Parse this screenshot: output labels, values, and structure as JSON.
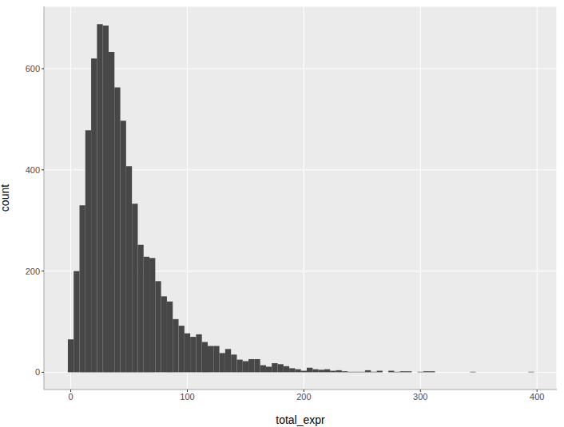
{
  "chart_data": {
    "type": "histogram",
    "x_label": "total_expr",
    "y_label": "count",
    "bins": [
      -2.5,
      2.5,
      7.5,
      12.5,
      17.5,
      22.5,
      27.5,
      32.5,
      37.5,
      42.5,
      47.5,
      52.5,
      57.5,
      62.5,
      67.5,
      72.5,
      77.5,
      82.5,
      87.5,
      92.5,
      97.5,
      102.5,
      107.5,
      112.5,
      117.5,
      122.5,
      127.5,
      132.5,
      137.5,
      142.5,
      147.5,
      152.5,
      157.5,
      162.5,
      167.5,
      172.5,
      177.5,
      182.5,
      187.5,
      192.5,
      197.5,
      202.5,
      207.5,
      212.5,
      217.5,
      222.5,
      227.5,
      232.5,
      237.5,
      242.5,
      247.5,
      252.5,
      257.5,
      262.5,
      267.5,
      272.5,
      277.5,
      282.5,
      287.5,
      292.5,
      297.5,
      302.5,
      307.5,
      312.5,
      317.5,
      322.5,
      327.5,
      332.5,
      337.5,
      342.5,
      347.5,
      352.5,
      357.5,
      362.5,
      367.5,
      372.5,
      377.5,
      382.5,
      387.5,
      392.5,
      397.5
    ],
    "values": [
      65,
      200,
      330,
      478,
      620,
      688,
      685,
      633,
      563,
      497,
      407,
      333,
      252,
      228,
      226,
      180,
      150,
      140,
      105,
      92,
      77,
      70,
      75,
      60,
      52,
      52,
      38,
      46,
      35,
      25,
      22,
      26,
      26,
      14,
      11,
      18,
      16,
      12,
      8,
      6,
      3,
      9,
      6,
      5,
      6,
      3,
      4,
      2,
      1,
      1,
      1,
      4,
      1,
      3,
      0,
      3,
      1,
      2,
      2,
      0,
      1,
      2,
      2,
      0,
      0,
      0,
      0,
      0,
      0,
      1,
      0,
      0,
      0,
      0,
      0,
      0,
      0,
      0,
      0,
      1
    ],
    "color": "#474747",
    "xlim": [
      -23,
      417
    ],
    "ylim": [
      -34,
      723
    ],
    "xticks": [
      0,
      100,
      200,
      300,
      400
    ],
    "yticks": [
      0,
      200,
      400,
      600
    ],
    "grid": true
  }
}
